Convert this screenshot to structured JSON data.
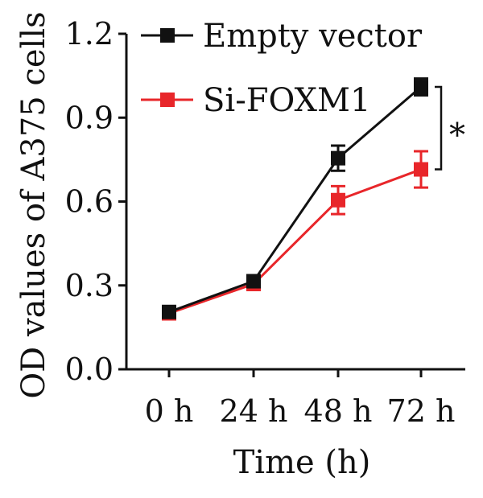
{
  "chart_data": {
    "type": "line",
    "xlabel": "Time (h)",
    "ylabel": "OD values of A375 cells",
    "categories": [
      "0 h",
      "24 h",
      "48 h",
      "72 h"
    ],
    "ylim": [
      0.0,
      1.2
    ],
    "yticks": [
      "0.0",
      "0.3",
      "0.6",
      "0.9",
      "1.2"
    ],
    "ytick_values": [
      0.0,
      0.3,
      0.6,
      0.9,
      1.2
    ],
    "legend_position": "top-left",
    "grid": false,
    "series": [
      {
        "name": "Empty vector",
        "color": "#111111",
        "values": [
          0.205,
          0.315,
          0.755,
          1.01
        ],
        "errors": [
          0.01,
          0.015,
          0.045,
          0.03
        ]
      },
      {
        "name": "Si-FOXM1",
        "color": "#e8262a",
        "values": [
          0.2,
          0.305,
          0.605,
          0.715
        ],
        "errors": [
          0.01,
          0.015,
          0.05,
          0.065
        ]
      }
    ],
    "annotation": "*"
  }
}
